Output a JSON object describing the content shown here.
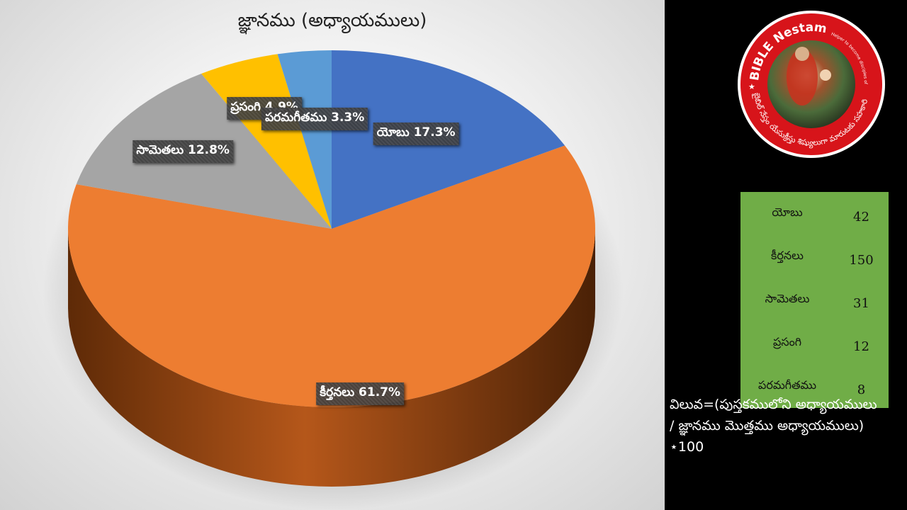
{
  "chart_data": {
    "type": "pie",
    "title": "జ్ఞానము (అధ్యాయములు)",
    "slices": [
      {
        "name": "యోబు",
        "value": 42,
        "percent_label": "17.3%",
        "color": "#4472c4"
      },
      {
        "name": "కీర్తనలు",
        "value": 150,
        "percent_label": "61.7%",
        "color": "#ed7d31"
      },
      {
        "name": "సామెతలు",
        "value": 31,
        "percent_label": "12.8%",
        "color": "#a5a5a5"
      },
      {
        "name": "ప్రసంగి",
        "value": 12,
        "percent_label": "4.9%",
        "color": "#ffc000"
      },
      {
        "name": "పరమగీతము",
        "value": 8,
        "percent_label": "3.3%",
        "color": "#5b9bd5"
      }
    ],
    "legend": "none",
    "style": "3d-pie"
  },
  "table": {
    "rows": [
      {
        "name": "యోబు",
        "value": "42"
      },
      {
        "name": "కీర్తనలు",
        "value": "150"
      },
      {
        "name": "సామెతలు",
        "value": "31"
      },
      {
        "name": "ప్రసంగి",
        "value": "12"
      },
      {
        "name": "పరమగీతము",
        "value": "8"
      }
    ],
    "background": "#70ad47"
  },
  "formula": {
    "line1": "విలువ=(పుస్తకములోని అధ్యాయములు",
    "line2": "/ జ్ఞానము మొత్తము అధ్యాయములు)",
    "line3": "⋆100"
  },
  "logo": {
    "top_text": "BIBLE Nestam",
    "tagline": "Helper to become disciples of JESUS CHRIST",
    "bottom_text": "బైబిల్ నేస్తం యేసుక్రీస్తు శిష్యులుగా మారుటకు సహకారి",
    "ring_color": "#d7141a"
  }
}
